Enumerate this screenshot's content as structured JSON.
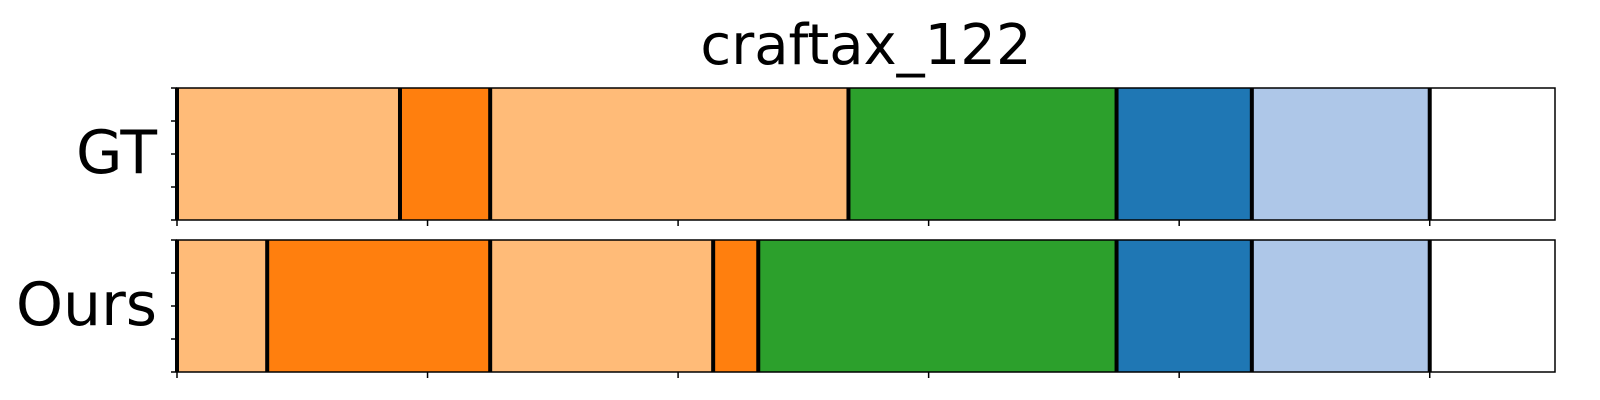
{
  "chart_data": {
    "type": "segmentation-timeline",
    "title": "craftax_122",
    "xlim": [
      0,
      550
    ],
    "tick_values": [
      0,
      100,
      200,
      300,
      400,
      500
    ],
    "ytick_count": 5,
    "boundary_color": "#000000",
    "rows": [
      {
        "label": "GT",
        "segments": [
          {
            "start": 0,
            "end": 89,
            "color": "#ffbb78"
          },
          {
            "start": 89,
            "end": 125,
            "color": "#ff7f0e"
          },
          {
            "start": 125,
            "end": 268,
            "color": "#ffbb78"
          },
          {
            "start": 268,
            "end": 375,
            "color": "#2ca02c"
          },
          {
            "start": 375,
            "end": 429,
            "color": "#1f77b4"
          },
          {
            "start": 429,
            "end": 500,
            "color": "#aec7e8"
          }
        ]
      },
      {
        "label": "Ours",
        "segments": [
          {
            "start": 0,
            "end": 36,
            "color": "#ffbb78"
          },
          {
            "start": 36,
            "end": 125,
            "color": "#ff7f0e"
          },
          {
            "start": 125,
            "end": 214,
            "color": "#ffbb78"
          },
          {
            "start": 214,
            "end": 232,
            "color": "#ff7f0e"
          },
          {
            "start": 232,
            "end": 375,
            "color": "#2ca02c"
          },
          {
            "start": 375,
            "end": 429,
            "color": "#1f77b4"
          },
          {
            "start": 429,
            "end": 500,
            "color": "#aec7e8"
          }
        ]
      }
    ]
  }
}
